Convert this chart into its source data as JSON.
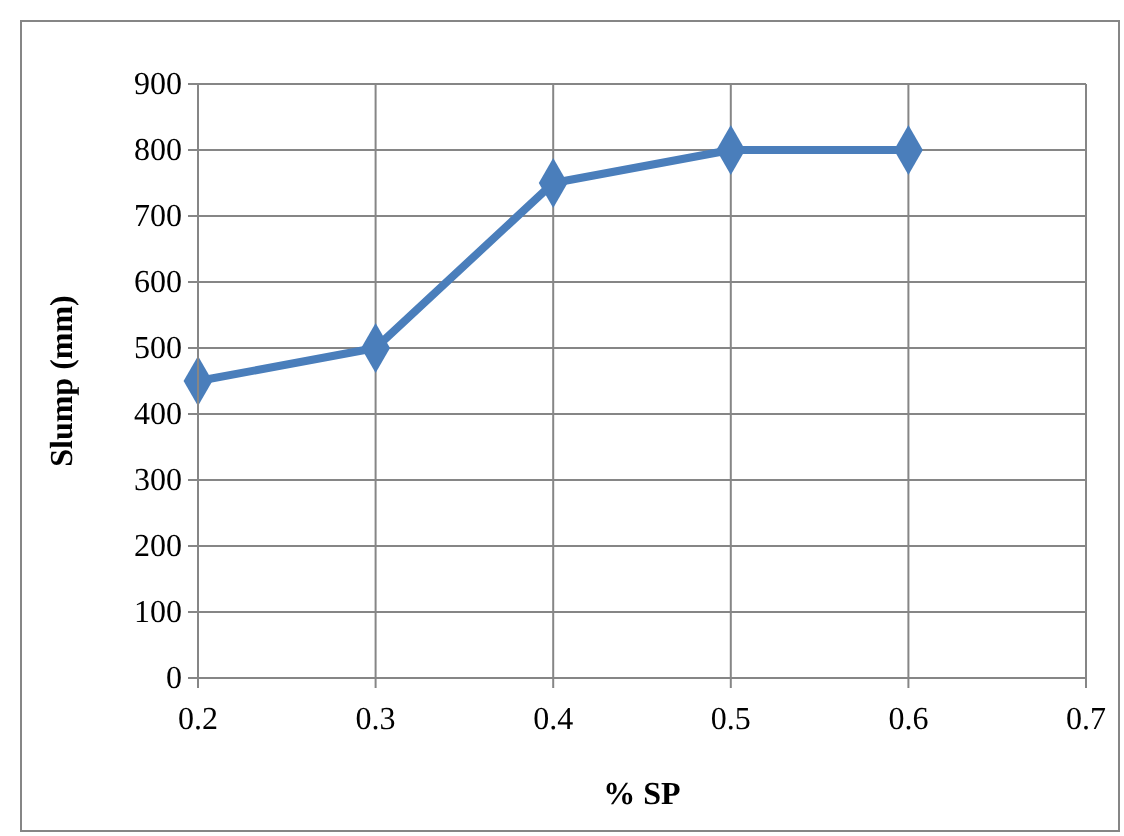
{
  "chart_data": {
    "type": "line",
    "xlabel": "% SP",
    "ylabel": "Slump (mm)",
    "x": [
      0.2,
      0.3,
      0.4,
      0.5,
      0.6
    ],
    "series": [
      {
        "color": "#4a7ebb",
        "values": [
          450,
          500,
          750,
          800,
          800
        ]
      }
    ],
    "xlim": [
      0.2,
      0.7
    ],
    "xticks": [
      0.2,
      0.3,
      0.4,
      0.5,
      0.6,
      0.7
    ],
    "ylim": [
      0,
      900
    ],
    "yticks": [
      0,
      100,
      200,
      300,
      400,
      500,
      600,
      700,
      800,
      900
    ],
    "grid": true,
    "marker": "diamond",
    "line_style": "solid"
  }
}
